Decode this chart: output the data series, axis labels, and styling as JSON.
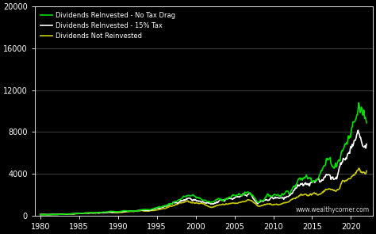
{
  "background_color": "#000000",
  "plot_bg_color": "#000000",
  "text_color": "#ffffff",
  "grid_color": "#555555",
  "ylim": [
    0,
    20000
  ],
  "yticks": [
    0,
    4000,
    8000,
    12000,
    16000,
    20000
  ],
  "xticks": [
    1980,
    1985,
    1990,
    1995,
    2000,
    2005,
    2010,
    2015,
    2020
  ],
  "line_no_tax": {
    "color": "#00dd00",
    "label": "Dividends ReInvested - No Tax Drag",
    "lw": 1.2
  },
  "line_tax": {
    "color": "#ffffff",
    "label": "Dividends ReInvested - 15% Tax",
    "lw": 1.2
  },
  "line_no_reinvest": {
    "color": "#cccc00",
    "label": "Dividends Not Reinvested",
    "lw": 1.2
  },
  "watermark": "www.wealthycorner.com",
  "years": [
    1980,
    1981,
    1982,
    1983,
    1984,
    1985,
    1986,
    1987,
    1988,
    1989,
    1990,
    1991,
    1992,
    1993,
    1994,
    1995,
    1996,
    1997,
    1998,
    1999,
    2000,
    2001,
    2002,
    2003,
    2004,
    2005,
    2006,
    2007,
    2008,
    2009,
    2010,
    2011,
    2012,
    2013,
    2014,
    2015,
    2016,
    2017,
    2018,
    2019,
    2020,
    2021,
    2022
  ],
  "no_tax_vals": [
    100,
    92,
    112,
    145,
    163,
    215,
    256,
    270,
    296,
    389,
    356,
    464,
    499,
    550,
    557,
    762,
    932,
    1246,
    1601,
    1940,
    1752,
    1545,
    1204,
    1555,
    1733,
    1820,
    2111,
    2233,
    1378,
    1749,
    2023,
    2068,
    2397,
    3175,
    3602,
    3635,
    4230,
    5182,
    4912,
    6546,
    7840,
    10450,
    9300
  ],
  "tax_15_vals": [
    100,
    91,
    110,
    141,
    158,
    207,
    245,
    258,
    282,
    368,
    335,
    433,
    463,
    509,
    514,
    699,
    850,
    1130,
    1443,
    1739,
    1562,
    1370,
    1062,
    1363,
    1510,
    1577,
    1819,
    1913,
    1172,
    1479,
    1699,
    1727,
    1992,
    2620,
    2955,
    2962,
    3420,
    4156,
    3913,
    5172,
    6160,
    8160,
    7200
  ],
  "no_reinvest_vals": [
    100,
    95,
    116,
    142,
    148,
    196,
    232,
    244,
    260,
    330,
    300,
    391,
    407,
    436,
    430,
    577,
    694,
    910,
    1151,
    1376,
    1237,
    1075,
    824,
    1041,
    1135,
    1168,
    1328,
    1374,
    845,
    1044,
    1177,
    1177,
    1334,
    1730,
    1927,
    1912,
    2094,
    2502,
    2346,
    3022,
    3514,
    4490,
    4225
  ]
}
